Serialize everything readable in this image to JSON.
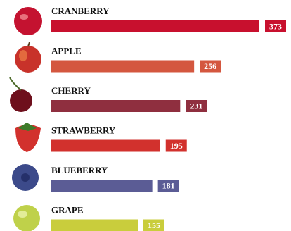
{
  "chart_data": {
    "type": "bar",
    "orientation": "horizontal",
    "categories": [
      "CRANBERRY",
      "APPLE",
      "CHERRY",
      "STRAWBERRY",
      "BLUEBERRY",
      "GRAPE"
    ],
    "values": [
      373,
      256,
      231,
      195,
      181,
      155
    ],
    "colors": [
      "#c8102e",
      "#d4573f",
      "#8f2f3f",
      "#d2312d",
      "#5b5c95",
      "#c9cd3c"
    ]
  }
}
